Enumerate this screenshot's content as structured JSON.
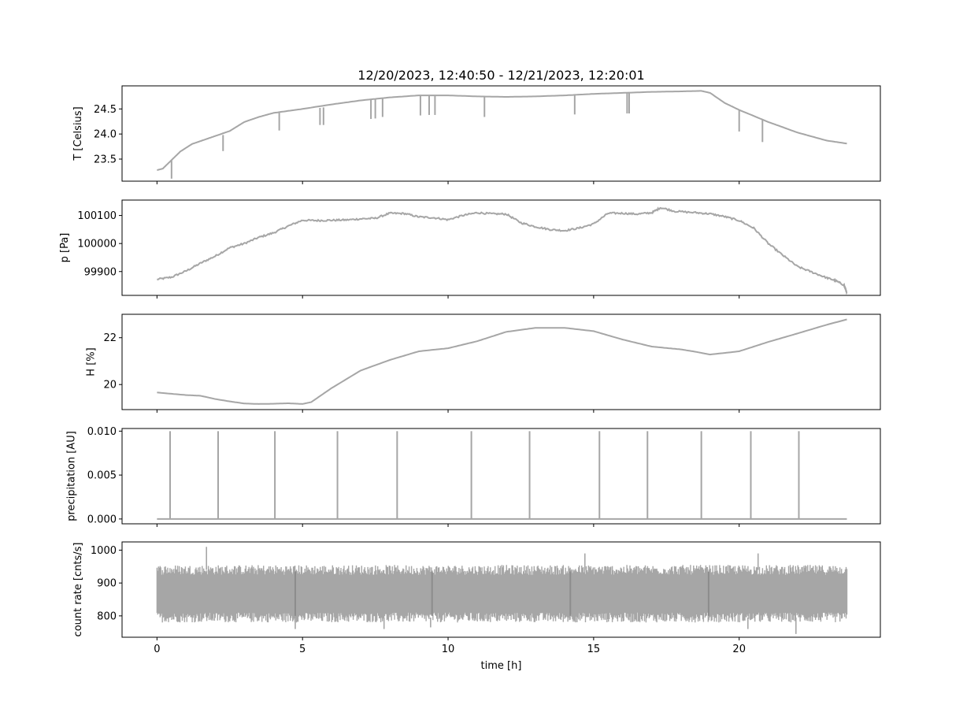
{
  "chart_data": {
    "title": "12/20/2023, 12:40:50 - 12/21/2023, 12:20:01",
    "xlabel": "time [h]",
    "xlim": [
      -1.2,
      24.85
    ],
    "xticks": [
      0,
      5,
      10,
      15,
      20
    ],
    "xtick_labels": [
      "0",
      "5",
      "10",
      "15",
      "20"
    ],
    "series_color": "#a6a6a6",
    "panels": [
      {
        "type": "line",
        "ylabel": "T [Celsius]",
        "ylim": [
          23.06,
          24.96
        ],
        "yticks": [
          23.5,
          24.0,
          24.5
        ],
        "ytick_labels": [
          "23.5",
          "24.0",
          "24.5"
        ],
        "points": [
          [
            0,
            23.28
          ],
          [
            0.2,
            23.31
          ],
          [
            0.5,
            23.48
          ],
          [
            0.8,
            23.65
          ],
          [
            1.2,
            23.8
          ],
          [
            1.6,
            23.88
          ],
          [
            2.0,
            23.96
          ],
          [
            2.5,
            24.06
          ],
          [
            3.0,
            24.24
          ],
          [
            3.5,
            24.34
          ],
          [
            4.0,
            24.42
          ],
          [
            5.0,
            24.5
          ],
          [
            6.0,
            24.59
          ],
          [
            7.0,
            24.67
          ],
          [
            8.0,
            24.73
          ],
          [
            9.0,
            24.77
          ],
          [
            10.0,
            24.77
          ],
          [
            11.0,
            24.75
          ],
          [
            12.0,
            24.74
          ],
          [
            13.0,
            24.75
          ],
          [
            14.0,
            24.77
          ],
          [
            15.0,
            24.8
          ],
          [
            16.0,
            24.82
          ],
          [
            17.0,
            24.84
          ],
          [
            18.0,
            24.85
          ],
          [
            18.7,
            24.86
          ],
          [
            19.0,
            24.82
          ],
          [
            19.5,
            24.62
          ],
          [
            20.0,
            24.48
          ],
          [
            21.0,
            24.24
          ],
          [
            22.0,
            24.03
          ],
          [
            23.0,
            23.87
          ],
          [
            23.7,
            23.81
          ]
        ],
        "spikes": [
          [
            0.5,
            23.48,
            23.11
          ],
          [
            2.27,
            23.98,
            23.66
          ],
          [
            4.2,
            24.43,
            24.07
          ],
          [
            5.6,
            24.52,
            24.18
          ],
          [
            5.72,
            24.53,
            24.18
          ],
          [
            7.35,
            24.68,
            24.3
          ],
          [
            7.5,
            24.69,
            24.31
          ],
          [
            7.75,
            24.71,
            24.34
          ],
          [
            9.05,
            24.77,
            24.37
          ],
          [
            9.35,
            24.77,
            24.38
          ],
          [
            9.55,
            24.77,
            24.38
          ],
          [
            11.25,
            24.75,
            24.34
          ],
          [
            14.35,
            24.77,
            24.39
          ],
          [
            16.15,
            24.82,
            24.41
          ],
          [
            16.22,
            24.82,
            24.41
          ],
          [
            20.0,
            24.48,
            24.05
          ],
          [
            20.8,
            24.28,
            23.84
          ]
        ]
      },
      {
        "type": "line",
        "ylabel": "p [Pa]",
        "ylim": [
          99815,
          100155
        ],
        "yticks": [
          99900,
          100000,
          100100
        ],
        "ytick_labels": [
          "99900",
          "100000",
          "100100"
        ],
        "points": [
          [
            0,
            99872
          ],
          [
            0.5,
            99880
          ],
          [
            1.0,
            99902
          ],
          [
            1.5,
            99930
          ],
          [
            2.0,
            99955
          ],
          [
            2.5,
            99985
          ],
          [
            3.0,
            100000
          ],
          [
            3.5,
            100022
          ],
          [
            4.0,
            100038
          ],
          [
            4.5,
            100062
          ],
          [
            5.0,
            100083
          ],
          [
            5.5,
            100082
          ],
          [
            6.0,
            100083
          ],
          [
            6.5,
            100084
          ],
          [
            7.0,
            100088
          ],
          [
            7.5,
            100090
          ],
          [
            8.0,
            100108
          ],
          [
            8.5,
            100107
          ],
          [
            9.0,
            100095
          ],
          [
            9.5,
            100092
          ],
          [
            10.0,
            100085
          ],
          [
            10.5,
            100100
          ],
          [
            11.0,
            100110
          ],
          [
            11.5,
            100106
          ],
          [
            12.0,
            100105
          ],
          [
            12.5,
            100074
          ],
          [
            13.0,
            100060
          ],
          [
            13.5,
            100050
          ],
          [
            14.0,
            100046
          ],
          [
            14.5,
            100055
          ],
          [
            15.0,
            100070
          ],
          [
            15.5,
            100108
          ],
          [
            16.0,
            100108
          ],
          [
            16.5,
            100105
          ],
          [
            17.0,
            100110
          ],
          [
            17.3,
            100128
          ],
          [
            17.8,
            100115
          ],
          [
            18.5,
            100110
          ],
          [
            19.0,
            100106
          ],
          [
            19.5,
            100096
          ],
          [
            20.0,
            100082
          ],
          [
            20.5,
            100055
          ],
          [
            21.0,
            100000
          ],
          [
            21.5,
            99958
          ],
          [
            22.0,
            99918
          ],
          [
            22.5,
            99898
          ],
          [
            23.0,
            99878
          ],
          [
            23.3,
            99868
          ],
          [
            23.6,
            99852
          ],
          [
            23.7,
            99825
          ]
        ]
      },
      {
        "type": "line",
        "ylabel": "H [%]",
        "ylim": [
          18.93,
          23.0
        ],
        "yticks": [
          20,
          22
        ],
        "ytick_labels": [
          "20",
          "22"
        ],
        "points": [
          [
            0,
            19.66
          ],
          [
            1.0,
            19.55
          ],
          [
            1.5,
            19.52
          ],
          [
            2.0,
            19.38
          ],
          [
            2.5,
            19.28
          ],
          [
            3.0,
            19.19
          ],
          [
            3.5,
            19.17
          ],
          [
            4.0,
            19.18
          ],
          [
            4.5,
            19.2
          ],
          [
            5.0,
            19.17
          ],
          [
            5.3,
            19.25
          ],
          [
            6.0,
            19.85
          ],
          [
            7.0,
            20.6
          ],
          [
            8.0,
            21.05
          ],
          [
            9.0,
            21.42
          ],
          [
            10.0,
            21.55
          ],
          [
            11.0,
            21.85
          ],
          [
            12.0,
            22.25
          ],
          [
            13.0,
            22.42
          ],
          [
            14.0,
            22.42
          ],
          [
            15.0,
            22.28
          ],
          [
            16.0,
            21.92
          ],
          [
            17.0,
            21.62
          ],
          [
            18.0,
            21.5
          ],
          [
            18.5,
            21.4
          ],
          [
            19.0,
            21.28
          ],
          [
            20.0,
            21.42
          ],
          [
            21.0,
            21.82
          ],
          [
            22.0,
            22.18
          ],
          [
            23.0,
            22.55
          ],
          [
            23.7,
            22.78
          ]
        ]
      },
      {
        "type": "line",
        "ylabel": "precipitation [AU]",
        "ylim": [
          -0.00055,
          0.0103
        ],
        "yticks": [
          0.0,
          0.005,
          0.01
        ],
        "ytick_labels": [
          "0.000",
          "0.005",
          "0.010"
        ],
        "baseline": 0.0,
        "x_end": 23.7,
        "spike_height": 0.01,
        "spike_times": [
          0.45,
          2.1,
          4.05,
          6.2,
          8.25,
          10.8,
          12.8,
          15.2,
          16.85,
          18.7,
          20.4,
          22.05
        ]
      },
      {
        "type": "line",
        "ylabel": "count rate [cnts/s]",
        "ylim": [
          735,
          1025
        ],
        "yticks": [
          800,
          900,
          1000
        ],
        "ytick_labels": [
          "800",
          "900",
          "1000"
        ],
        "band_low": 795,
        "band_high": 940,
        "x_end": 23.7,
        "outliers": [
          [
            1.7,
            1010
          ],
          [
            4.75,
            760
          ],
          [
            9.4,
            765
          ],
          [
            14.7,
            990
          ],
          [
            20.3,
            760
          ],
          [
            20.65,
            990
          ],
          [
            21.95,
            745
          ],
          [
            7.8,
            760
          ]
        ],
        "dark_lines": [
          4.75,
          9.45,
          14.2,
          18.95
        ]
      }
    ]
  }
}
